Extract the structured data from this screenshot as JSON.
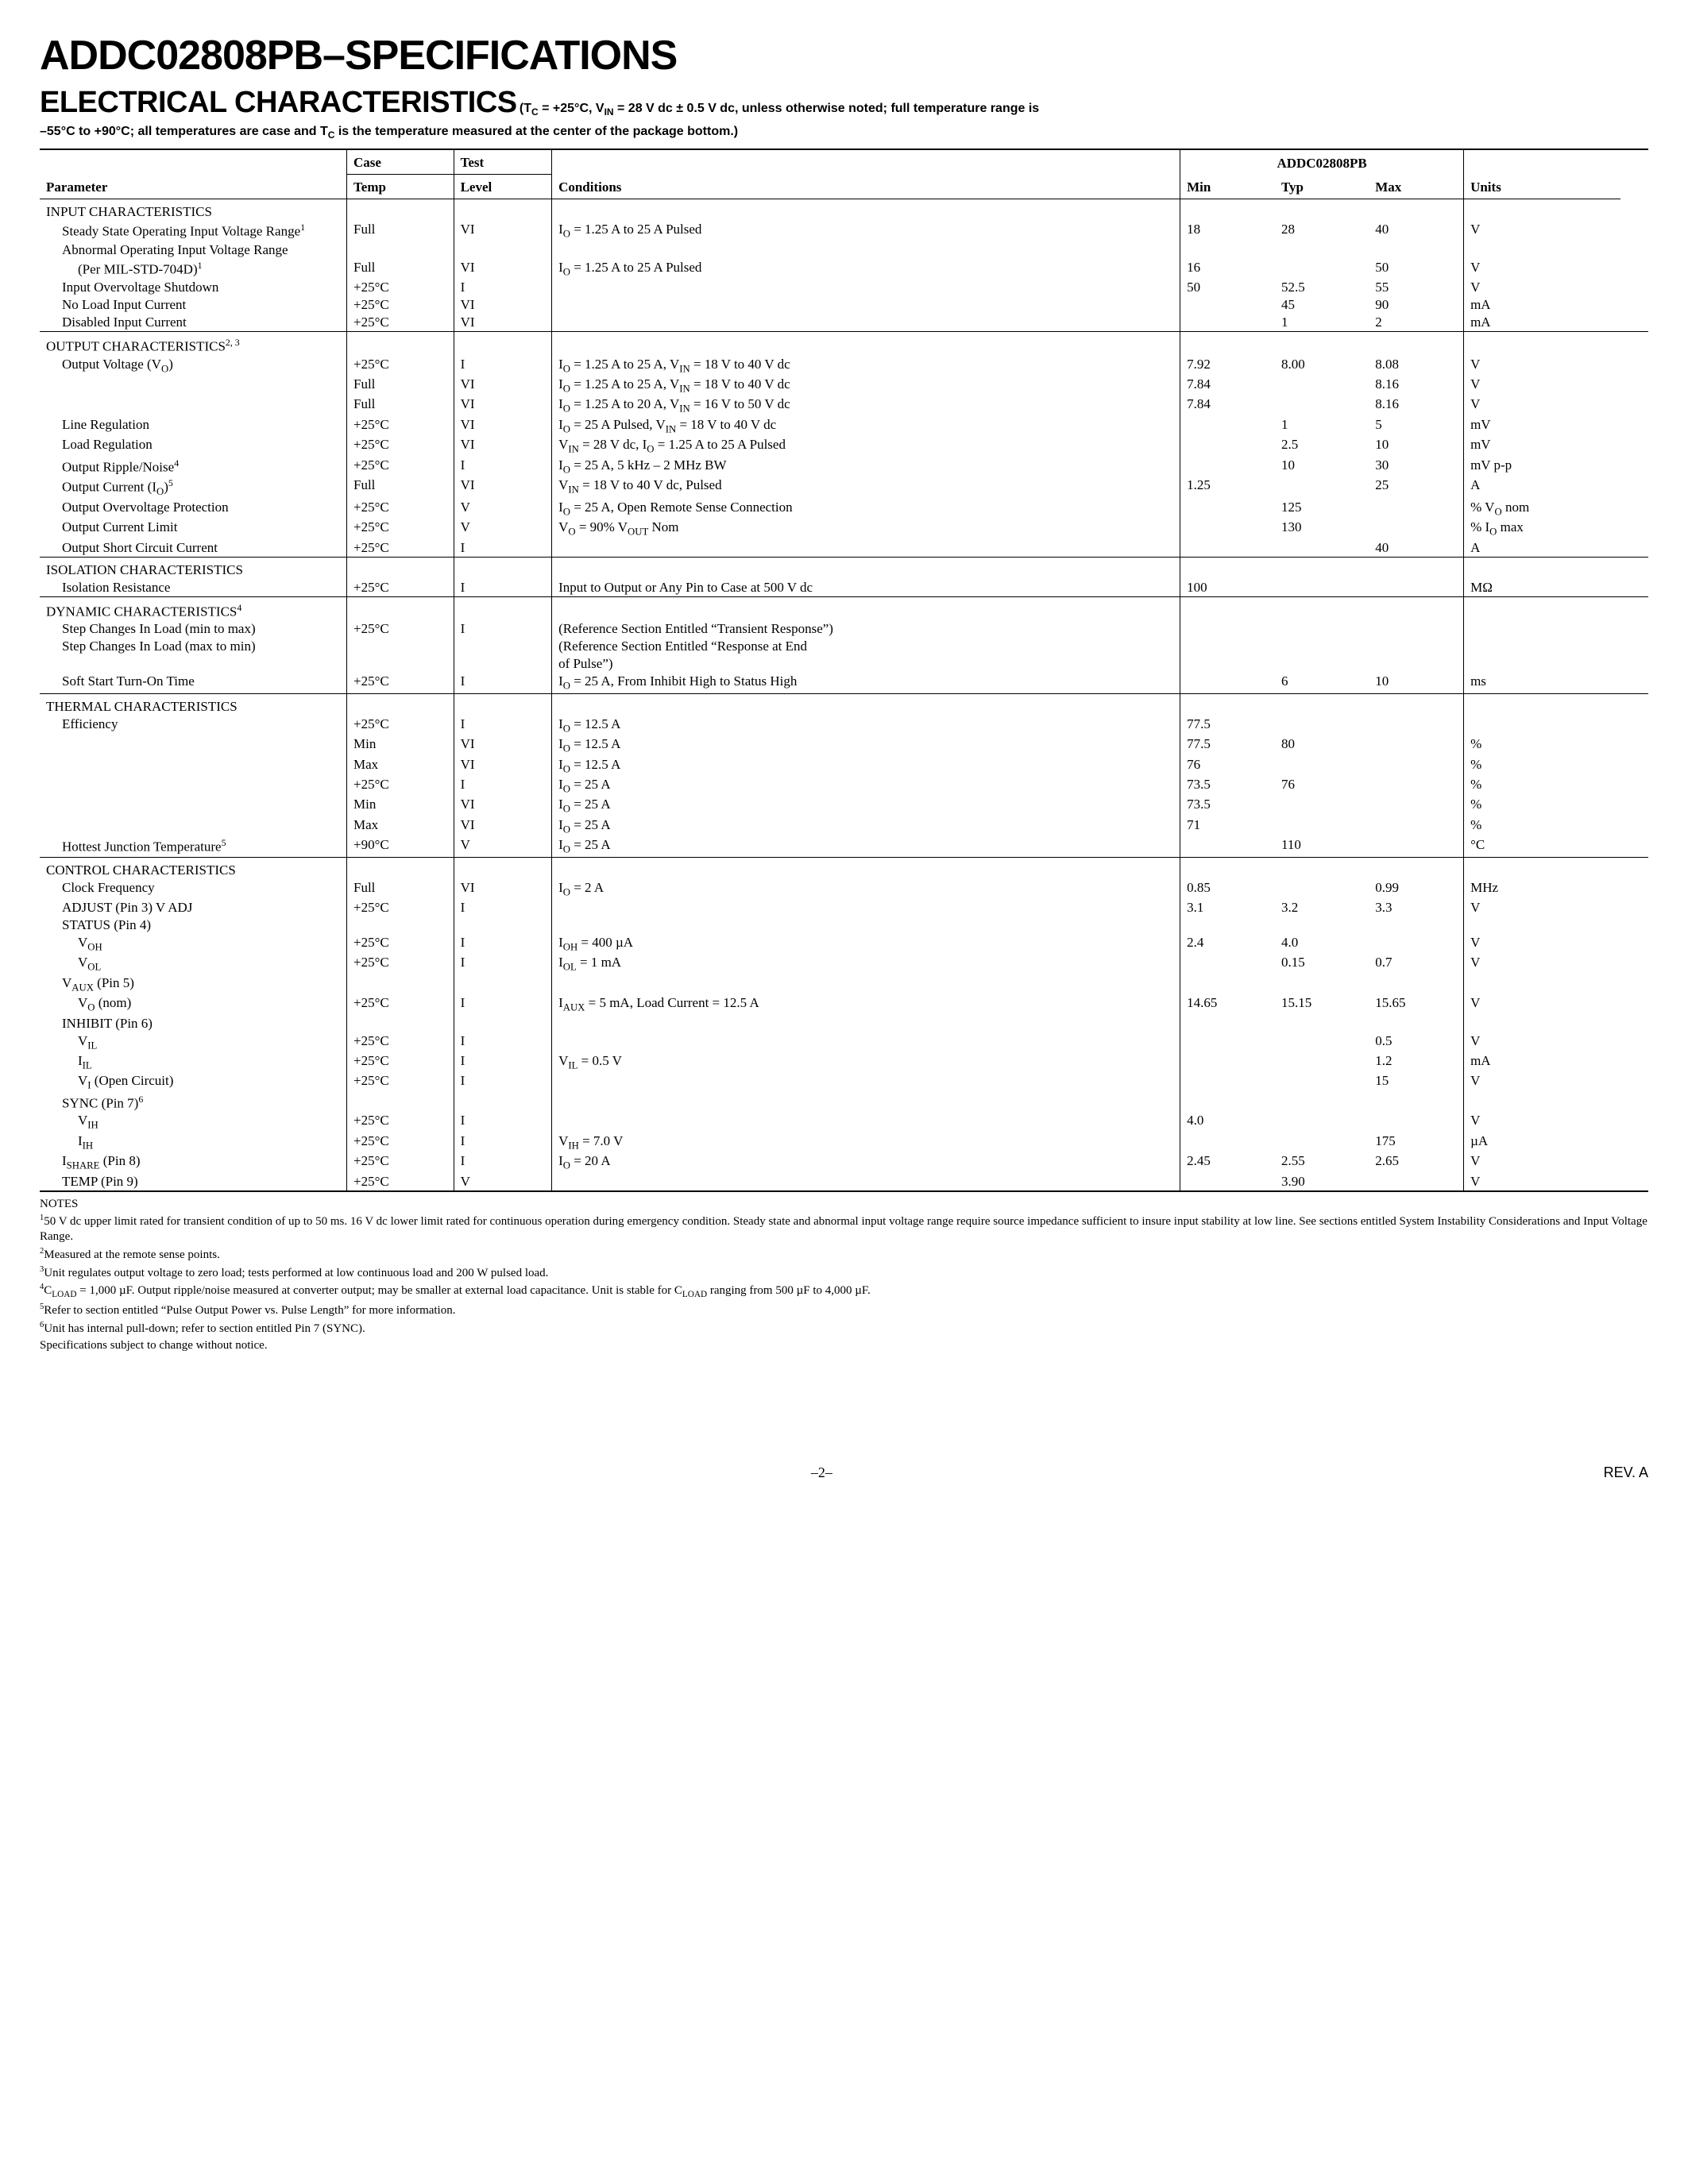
{
  "title": "ADDC02808PB–SPECIFICATIONS",
  "subtitle_main": "ELECTRICAL CHARACTERISTICS",
  "subtitle_cond_a": "(T",
  "subtitle_cond_b": " = +25°C, V",
  "subtitle_cond_c": " = 28 V dc ± 0.5 V dc, unless otherwise noted; full temperature range is",
  "subtitle_cond2a": "–55°C to +90°C; all temperatures are case and T",
  "subtitle_cond2b": " is the temperature measured at the center of the package bottom.)",
  "headers": {
    "param": "Parameter",
    "case1": "Case",
    "case2": "Temp",
    "test1": "Test",
    "test2": "Level",
    "cond": "Conditions",
    "part": "ADDC02808PB",
    "min": "Min",
    "typ": "Typ",
    "max": "Max",
    "units": "Units"
  },
  "sections": [
    {
      "name": "INPUT CHARACTERISTICS",
      "first": true,
      "rows": [
        {
          "p": "Steady State Operating Input Voltage Range",
          "sup": "1",
          "i": 1,
          "ct": "Full",
          "tl": "VI",
          "cond_pre": "I",
          "cond_sub": "O",
          "cond_post": " = 1.25 A to 25 A Pulsed",
          "min": "18",
          "typ": "28",
          "max": "40",
          "u": "V"
        },
        {
          "p": "Abnormal Operating Input Voltage Range",
          "i": 1
        },
        {
          "p": "(Per MIL-STD-704D)",
          "sup": "1",
          "i": 2,
          "ct": "Full",
          "tl": "VI",
          "cond_pre": "I",
          "cond_sub": "O",
          "cond_post": " = 1.25 A to 25 A Pulsed",
          "min": "16",
          "max": "50",
          "u": "V"
        },
        {
          "p": "Input Overvoltage Shutdown",
          "i": 1,
          "ct": "+25°C",
          "tl": "I",
          "min": "50",
          "typ": "52.5",
          "max": "55",
          "u": "V"
        },
        {
          "p": "No Load Input Current",
          "i": 1,
          "ct": "+25°C",
          "tl": "VI",
          "typ": "45",
          "max": "90",
          "u": "mA"
        },
        {
          "p": "Disabled Input Current",
          "i": 1,
          "ct": "+25°C",
          "tl": "VI",
          "typ": "1",
          "max": "2",
          "u": "mA"
        }
      ]
    },
    {
      "name": "OUTPUT CHARACTERISTICS",
      "name_sup": "2, 3",
      "rows": [
        {
          "p": "Output Voltage (V",
          "p_sub": "O",
          "p_post": ")",
          "i": 1,
          "ct": "+25°C",
          "tl": "I",
          "cond_html": "I<sub>O</sub> = 1.25 A to 25 A, V<sub>IN</sub> = 18 V to 40 V dc",
          "min": "7.92",
          "typ": "8.00",
          "max": "8.08",
          "u": "V"
        },
        {
          "p": "",
          "i": 1,
          "ct": "Full",
          "tl": "VI",
          "cond_html": "I<sub>O</sub> = 1.25 A to 25 A, V<sub>IN</sub> = 18 V to 40 V dc",
          "min": "7.84",
          "max": "8.16",
          "u": "V"
        },
        {
          "p": "",
          "i": 1,
          "ct": "Full",
          "tl": "VI",
          "cond_html": "I<sub>O</sub> = 1.25 A to 20 A, V<sub>IN</sub> = 16 V to 50 V dc",
          "min": "7.84",
          "max": "8.16",
          "u": "V"
        },
        {
          "p": "Line Regulation",
          "i": 1,
          "ct": "+25°C",
          "tl": "VI",
          "cond_html": "I<sub>O</sub> = 25 A Pulsed, V<sub>IN</sub> = 18 V to 40 V dc",
          "typ": "1",
          "max": "5",
          "u": "mV"
        },
        {
          "p": "Load Regulation",
          "i": 1,
          "ct": "+25°C",
          "tl": "VI",
          "cond_html": "V<sub>IN</sub> = 28 V dc, I<sub>O</sub> = 1.25 A to 25 A Pulsed",
          "typ": "2.5",
          "max": "10",
          "u": "mV"
        },
        {
          "p": "Output Ripple/Noise",
          "sup": "4",
          "i": 1,
          "ct": "+25°C",
          "tl": "I",
          "cond_html": "I<sub>O</sub> = 25 A, 5 kHz – 2 MHz BW",
          "typ": "10",
          "max": "30",
          "u": "mV p-p"
        },
        {
          "p": "Output Current (I",
          "p_sub": "O",
          "p_post": ")",
          "sup": "5",
          "i": 1,
          "ct": "Full",
          "tl": "VI",
          "cond_html": "V<sub>IN</sub> = 18 V to 40 V dc, Pulsed",
          "min": "1.25",
          "max": "25",
          "u": "A"
        },
        {
          "p": "Output Overvoltage Protection",
          "i": 1,
          "ct": "+25°C",
          "tl": "V",
          "cond_html": "I<sub>O</sub> = 25 A, Open Remote Sense Connection",
          "typ": "125",
          "u_html": "% V<sub>O</sub> nom"
        },
        {
          "p": "Output Current Limit",
          "i": 1,
          "ct": "+25°C",
          "tl": "V",
          "cond_html": "V<sub>O</sub> = 90% V<sub>OUT</sub> Nom",
          "typ": "130",
          "u_html": "% I<sub>O</sub> max"
        },
        {
          "p": "Output Short Circuit Current",
          "i": 1,
          "ct": "+25°C",
          "tl": "I",
          "max": "40",
          "u": "A"
        }
      ]
    },
    {
      "name": "ISOLATION CHARACTERISTICS",
      "rows": [
        {
          "p": "Isolation Resistance",
          "i": 1,
          "ct": "+25°C",
          "tl": "I",
          "cond": "Input to Output or Any Pin to Case at 500 V dc",
          "min": "100",
          "u": "MΩ"
        }
      ]
    },
    {
      "name": "DYNAMIC CHARACTERISTICS",
      "name_sup": "4",
      "rows": [
        {
          "p": "Step Changes In Load (min to max)",
          "i": 1,
          "ct": "+25°C",
          "tl": "I",
          "cond": "(Reference Section Entitled “Transient Response”)"
        },
        {
          "p": "Step Changes In Load (max to min)",
          "i": 1,
          "cond": "(Reference Section Entitled “Response at End"
        },
        {
          "p": "",
          "i": 1,
          "cond": "of Pulse”)"
        },
        {
          "p": "Soft Start Turn-On Time",
          "i": 1,
          "ct": "+25°C",
          "tl": "I",
          "cond_html": "I<sub>O</sub> = 25 A, From Inhibit High to Status High",
          "typ": "6",
          "max": "10",
          "u": "ms"
        }
      ]
    },
    {
      "name": "THERMAL CHARACTERISTICS",
      "rows": [
        {
          "p": "Efficiency",
          "i": 1,
          "ct": "+25°C",
          "tl": "I",
          "cond_html": "I<sub>O</sub> = 12.5 A",
          "min": "77.5"
        },
        {
          "p": "",
          "i": 1,
          "ct": "Min",
          "tl": "VI",
          "cond_html": "I<sub>O</sub> = 12.5 A",
          "min": "77.5",
          "typ": "80",
          "u": "%"
        },
        {
          "p": "",
          "i": 1,
          "ct": "Max",
          "tl": "VI",
          "cond_html": "I<sub>O</sub> = 12.5 A",
          "min": "76",
          "u": "%"
        },
        {
          "p": "",
          "i": 1,
          "ct": "+25°C",
          "tl": "I",
          "cond_html": "I<sub>O</sub> = 25 A",
          "min": "73.5",
          "typ": "76",
          "u": "%"
        },
        {
          "p": "",
          "i": 1,
          "ct": "Min",
          "tl": "VI",
          "cond_html": "I<sub>O</sub> = 25 A",
          "min": "73.5",
          "u": "%"
        },
        {
          "p": "",
          "i": 1,
          "ct": "Max",
          "tl": "VI",
          "cond_html": "I<sub>O</sub> = 25 A",
          "min": "71",
          "u": "%"
        },
        {
          "p": "Hottest Junction Temperature",
          "sup": "5",
          "i": 1,
          "ct": "+90°C",
          "tl": "V",
          "cond_html": "I<sub>O</sub> = 25 A",
          "typ": "110",
          "u": "°C"
        }
      ]
    },
    {
      "name": "CONTROL CHARACTERISTICS",
      "rows": [
        {
          "p": "Clock Frequency",
          "i": 1,
          "ct": "Full",
          "tl": "VI",
          "cond_html": "I<sub>O</sub> = 2 A",
          "min": "0.85",
          "max": "0.99",
          "u": "MHz"
        },
        {
          "p": "ADJUST (Pin 3) V ADJ",
          "i": 1,
          "ct": "+25°C",
          "tl": "I",
          "min": "3.1",
          "typ": "3.2",
          "max": "3.3",
          "u": "V"
        },
        {
          "p": "STATUS (Pin 4)",
          "i": 1
        },
        {
          "p_html": "V<sub>OH</sub>",
          "i": 2,
          "ct": "+25°C",
          "tl": "I",
          "cond_html": "I<sub>OH</sub> = 400 µA",
          "min": "2.4",
          "typ": "4.0",
          "u": "V"
        },
        {
          "p_html": "V<sub>OL</sub>",
          "i": 2,
          "ct": "+25°C",
          "tl": "I",
          "cond_html": "I<sub>OL</sub> = 1 mA",
          "typ": "0.15",
          "max": "0.7",
          "u": "V"
        },
        {
          "p_html": "V<sub>AUX</sub> (Pin 5)",
          "i": 1
        },
        {
          "p_html": "V<sub>O</sub> (nom)",
          "i": 2,
          "ct": "+25°C",
          "tl": "I",
          "cond_html": "I<sub>AUX</sub> = 5 mA, Load Current = 12.5 A",
          "min": "14.65",
          "typ": "15.15",
          "max": "15.65",
          "u": "V"
        },
        {
          "p": "INHIBIT (Pin 6)",
          "i": 1
        },
        {
          "p_html": "V<sub>IL</sub>",
          "i": 2,
          "ct": "+25°C",
          "tl": "I",
          "max": "0.5",
          "u": "V"
        },
        {
          "p_html": "I<sub>IL</sub>",
          "i": 2,
          "ct": "+25°C",
          "tl": "I",
          "cond_html": "V<sub>IL</sub> = 0.5 V",
          "max": "1.2",
          "u": "mA"
        },
        {
          "p_html": "V<sub>I</sub> (Open Circuit)",
          "i": 2,
          "ct": "+25°C",
          "tl": "I",
          "max": "15",
          "u": "V"
        },
        {
          "p_html": "SYNC (Pin 7)<sup>6</sup>",
          "i": 1
        },
        {
          "p_html": "V<sub>IH</sub>",
          "i": 2,
          "ct": "+25°C",
          "tl": "I",
          "min": "4.0",
          "u": "V"
        },
        {
          "p_html": "I<sub>IH</sub>",
          "i": 2,
          "ct": "+25°C",
          "tl": "I",
          "cond_html": "V<sub>IH</sub> = 7.0 V",
          "max": "175",
          "u": "µA"
        },
        {
          "p_html": "I<sub>SHARE</sub> (Pin 8)",
          "i": 1,
          "ct": "+25°C",
          "tl": "I",
          "cond_html": "I<sub>O</sub> = 20 A",
          "min": "2.45",
          "typ": "2.55",
          "max": "2.65",
          "u": "V"
        },
        {
          "p": "TEMP (Pin 9)",
          "i": 1,
          "ct": "+25°C",
          "tl": "V",
          "typ": "3.90",
          "u": "V"
        }
      ]
    }
  ],
  "notes_title": "NOTES",
  "notes": [
    "50 V dc upper limit rated for transient condition of up to 50 ms.  16 V dc lower limit rated for continuous operation during emergency condition.  Steady state and abnormal input voltage range require source impedance sufficient to insure input stability at low line. See sections entitled System Instability Considerations and Input Voltage Range.",
    "Measured at the remote sense points.",
    "Unit regulates output voltage to zero load; tests performed at low continuous load and 200 W pulsed load.",
    "C<sub>LOAD</sub> = 1,000 µF. Output ripple/noise measured at converter output; may be smaller at external load capacitance. Unit is stable for C<sub>LOAD</sub> ranging from 500 µF to 4,000 µF.",
    "Refer to section entitled “Pulse Output Power vs. Pulse Length” for more information.",
    "Unit has internal pull-down; refer to section entitled Pin 7 (SYNC)."
  ],
  "notes_tail": "Specifications subject to change without notice.",
  "footer_page": "–2–",
  "footer_rev": "REV. A"
}
